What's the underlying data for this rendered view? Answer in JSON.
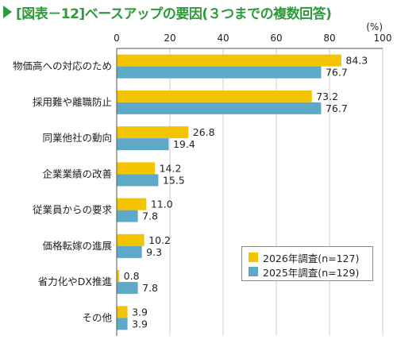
{
  "title": "[図表－12]ベースアップの要因(３つまでの複数回答)",
  "colors": {
    "title": "#2e9a3b",
    "series_2026": "#f2c500",
    "series_2025": "#5fa9c8"
  },
  "chart_data": {
    "type": "bar",
    "orientation": "horizontal",
    "unit": "(%)",
    "xlim": [
      0,
      100
    ],
    "ticks": [
      0,
      20,
      40,
      60,
      80,
      100
    ],
    "grid": true,
    "legend_position": "bottom-right",
    "categories": [
      "物価高への対応のため",
      "採用難や離職防止",
      "同業他社の動向",
      "企業業績の改善",
      "従業員からの要求",
      "価格転嫁の進展",
      "省力化やDX推進",
      "その他"
    ],
    "series": [
      {
        "name": "2026年調査(n=127)",
        "color": "#f2c500",
        "values": [
          84.3,
          73.2,
          26.8,
          14.2,
          11.0,
          10.2,
          0.8,
          3.9
        ]
      },
      {
        "name": "2025年調査(n=129)",
        "color": "#5fa9c8",
        "values": [
          76.7,
          76.7,
          19.4,
          15.5,
          7.8,
          9.3,
          7.8,
          3.9
        ]
      }
    ]
  }
}
